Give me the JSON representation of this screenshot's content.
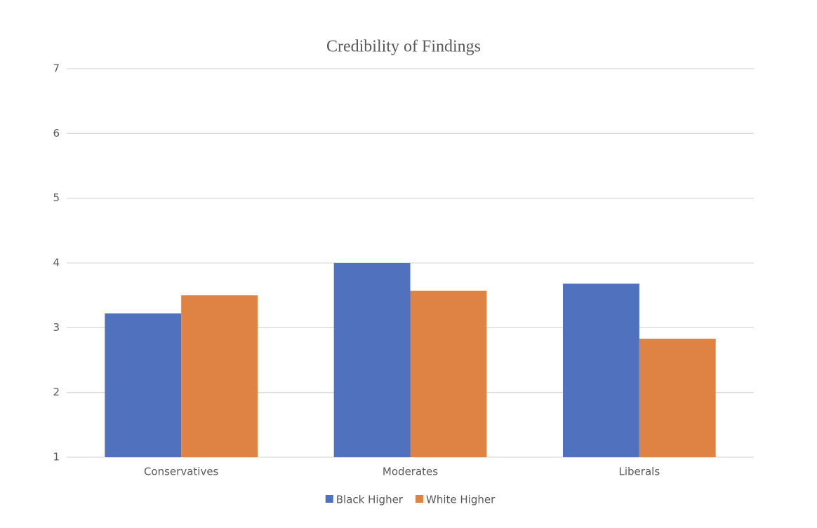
{
  "chart_data": {
    "type": "bar",
    "title": "Credibility of Findings",
    "categories": [
      "Conservatives",
      "Moderates",
      "Liberals"
    ],
    "series": [
      {
        "name": "Black Higher",
        "color": "#4f71be",
        "values": [
          3.22,
          4.0,
          3.68
        ]
      },
      {
        "name": "White Higher",
        "color": "#de8344",
        "values": [
          3.5,
          3.57,
          2.83
        ]
      }
    ],
    "ylim": [
      1,
      7
    ],
    "yticks": [
      1,
      2,
      3,
      4,
      5,
      6,
      7
    ],
    "grid": true,
    "legend": "bottom"
  }
}
